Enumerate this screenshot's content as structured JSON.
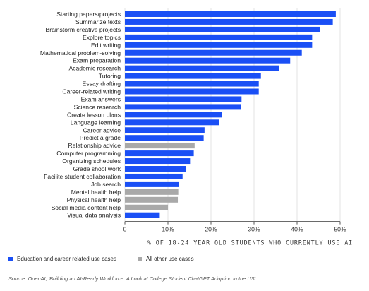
{
  "chart_data": {
    "type": "bar",
    "orientation": "horizontal",
    "categories": [
      "Starting papers/projects",
      "Summarize texts",
      "Brainstorm creative projects",
      "Explore topics",
      "Edit writing",
      "Mathematical problem-solving",
      "Exam preparation",
      "Academic research",
      "Tutoring",
      "Essay drafting",
      "Career-related writing",
      "Exam answers",
      "Science research",
      "Create lesson plans",
      "Language learning",
      "Career advice",
      "Predict a grade",
      "Relationship advice",
      "Computer programming",
      "Organizing schedules",
      "Grade shool work",
      "Facilite student collaboration",
      "Job search",
      "Mental health help",
      "Physical health help",
      "Social media content help",
      "Visual data analysis"
    ],
    "values": [
      49,
      48.3,
      45.3,
      43.5,
      43.5,
      41.1,
      38.4,
      35.8,
      31.6,
      31.1,
      31.1,
      27.1,
      27.0,
      22.6,
      21.9,
      18.5,
      18.3,
      16.2,
      16.0,
      15.3,
      14.1,
      13.4,
      12.5,
      12.4,
      12.3,
      10.0,
      8.1
    ],
    "groups": [
      "edu",
      "edu",
      "edu",
      "edu",
      "edu",
      "edu",
      "edu",
      "edu",
      "edu",
      "edu",
      "edu",
      "edu",
      "edu",
      "edu",
      "edu",
      "edu",
      "edu",
      "other",
      "edu",
      "edu",
      "edu",
      "edu",
      "edu",
      "other",
      "other",
      "other",
      "edu"
    ],
    "xlim": [
      0,
      50
    ],
    "ticks": [
      "0",
      "10%",
      "20%",
      "30%",
      "40%",
      "50%"
    ],
    "xlabel": "% OF 18-24 YEAR OLD STUDENTS WHO CURRENTLY USE AI",
    "grid": true,
    "legend": {
      "placement": "bottom-left",
      "entries": [
        {
          "name": "Education and career related use cases",
          "color": "#1a4ff5"
        },
        {
          "name": "All other use cases",
          "color": "#a9a9a9"
        }
      ]
    },
    "colors": {
      "edu": "#1a4ff5",
      "other": "#a9a9a9"
    },
    "source": "Source: OpenAI, 'Building an AI-Ready Workforce: A Look at College Student ChatGPT Adoption in the US'"
  }
}
